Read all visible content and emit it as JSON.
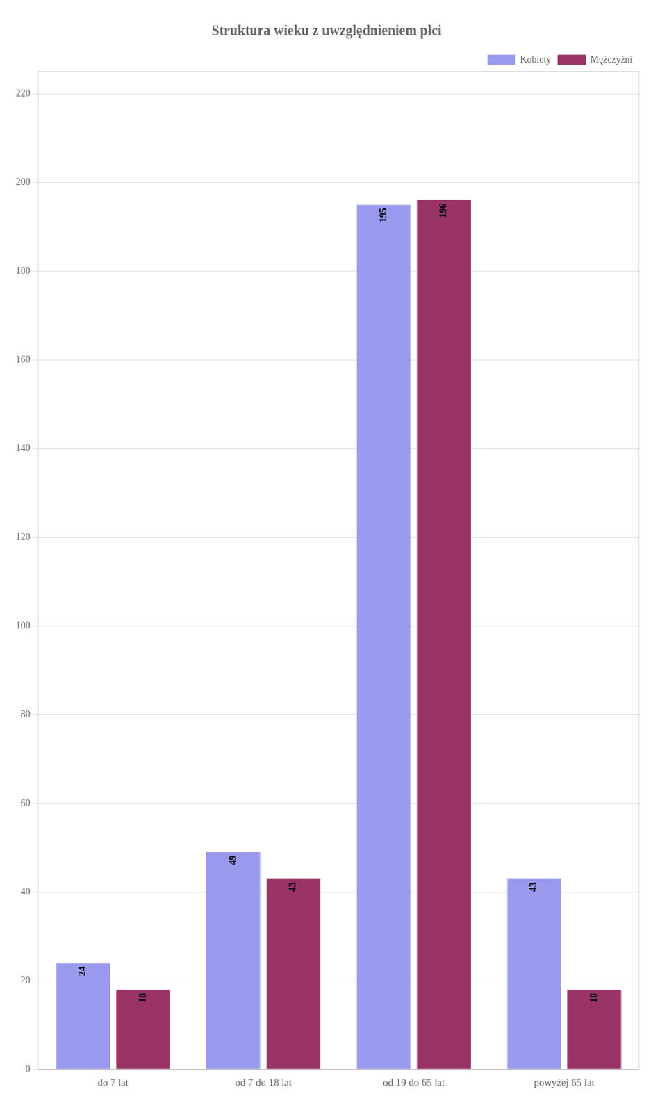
{
  "chart_data": {
    "type": "bar",
    "title": "Struktura wieku z uwzględnieniem płci",
    "categories": [
      "do 7 lat",
      "od 7 do 18 lat",
      "od 19 do 65 lat",
      "powyżej 65 lat"
    ],
    "series": [
      {
        "name": "Kobiety",
        "color": "#9999ee",
        "values": [
          24,
          49,
          195,
          43
        ]
      },
      {
        "name": "Mężczyźni",
        "color": "#993366",
        "values": [
          18,
          43,
          196,
          18
        ]
      }
    ],
    "ylim": [
      0,
      225
    ],
    "yticks": [
      0,
      20,
      40,
      60,
      80,
      100,
      120,
      140,
      160,
      180,
      200,
      220
    ],
    "grid": true,
    "legend": "upper right",
    "data_labels": true
  }
}
